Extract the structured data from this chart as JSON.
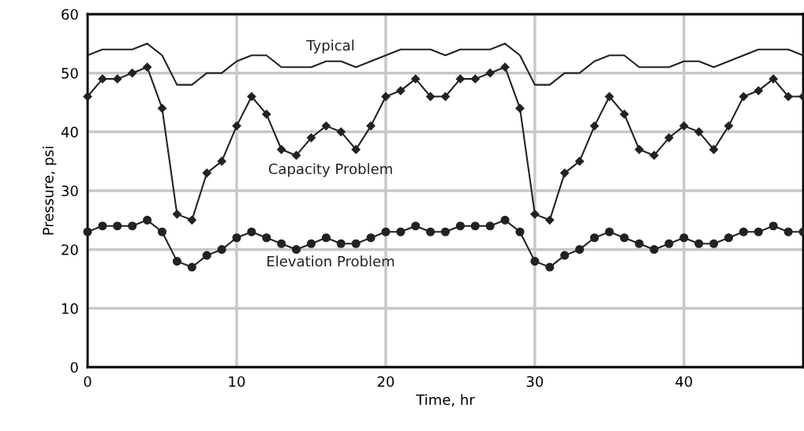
{
  "chart_data": {
    "type": "line",
    "xlabel": "Time, hr",
    "ylabel": "Pressure, psi",
    "x": [
      0,
      1,
      2,
      3,
      4,
      5,
      6,
      7,
      8,
      9,
      10,
      11,
      12,
      13,
      14,
      15,
      16,
      17,
      18,
      19,
      20,
      21,
      22,
      23,
      24,
      25,
      26,
      27,
      28,
      29,
      30,
      31,
      32,
      33,
      34,
      35,
      36,
      37,
      38,
      39,
      40,
      41,
      42,
      43,
      44,
      45,
      46,
      47,
      48
    ],
    "series": [
      {
        "name": "Typical",
        "color": "#222222",
        "marker": "none",
        "values": [
          53,
          54,
          54,
          54,
          55,
          53,
          48,
          48,
          50,
          50,
          52,
          53,
          53,
          51,
          51,
          51,
          52,
          52,
          51,
          52,
          53,
          54,
          54,
          54,
          53,
          54,
          54,
          54,
          55,
          53,
          48,
          48,
          50,
          50,
          52,
          53,
          53,
          51,
          51,
          51,
          52,
          52,
          51,
          52,
          53,
          54,
          54,
          54,
          53
        ]
      },
      {
        "name": "Capacity Problem",
        "color": "#222222",
        "marker": "diamond",
        "values": [
          46,
          49,
          49,
          50,
          51,
          44,
          26,
          25,
          33,
          35,
          41,
          46,
          43,
          37,
          36,
          39,
          41,
          40,
          37,
          41,
          46,
          47,
          49,
          46,
          46,
          49,
          49,
          50,
          51,
          44,
          26,
          25,
          33,
          35,
          41,
          46,
          43,
          37,
          36,
          39,
          41,
          40,
          37,
          41,
          46,
          47,
          49,
          46,
          46
        ]
      },
      {
        "name": "Elevation Problem",
        "color": "#222222",
        "marker": "circle",
        "values": [
          23,
          24,
          24,
          24,
          25,
          23,
          18,
          17,
          19,
          20,
          22,
          23,
          22,
          21,
          20,
          21,
          22,
          21,
          21,
          22,
          23,
          23,
          24,
          23,
          23,
          24,
          24,
          24,
          25,
          23,
          18,
          17,
          19,
          20,
          22,
          23,
          22,
          21,
          20,
          21,
          22,
          21,
          21,
          22,
          23,
          23,
          24,
          23,
          23
        ]
      }
    ],
    "xlim": [
      0,
      48
    ],
    "xticks": [
      0,
      10,
      20,
      30,
      40
    ],
    "ylim": [
      0,
      60
    ],
    "yticks": [
      0,
      10,
      20,
      30,
      40,
      50,
      60
    ],
    "grid": true,
    "legend": false
  }
}
